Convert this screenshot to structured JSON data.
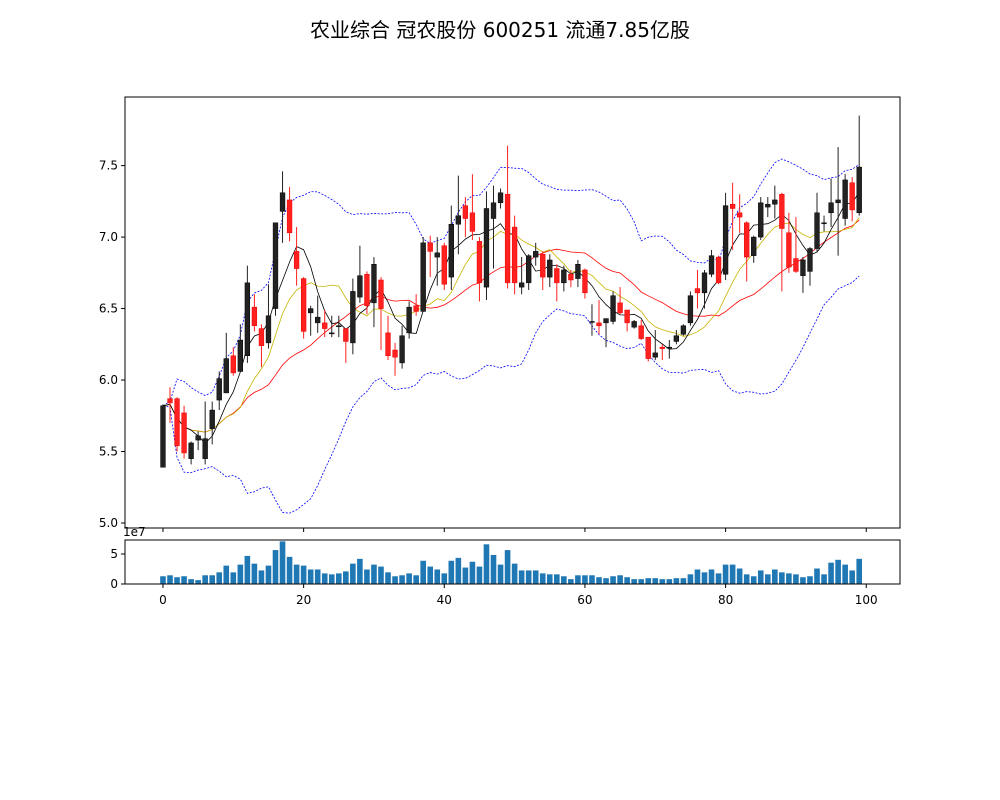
{
  "title": "农业综合 冠农股份 600251 流通7.85亿股",
  "chart_data": [
    {
      "type": "candlestick",
      "title": "农业综合 冠农股份 600251 流通7.85亿股",
      "xlim": [
        -5.4,
        104.8
      ],
      "ylim": [
        4.965,
        7.98
      ],
      "yticks": [
        "5.0",
        "5.5",
        "6.0",
        "6.5",
        "7.0",
        "7.5"
      ],
      "grid": false,
      "colors": {
        "up": "#222222",
        "down": "#ff2020",
        "ma_short": "#000000",
        "ma_mid": "#c8b400",
        "ma_long": "#ff0000",
        "bollinger": "#0000ff"
      },
      "overlays": [
        "moving average (black)",
        "moving average (yellow)",
        "moving average (red)",
        "bollinger bands (blue dashed)"
      ],
      "open": [
        5.39,
        5.87,
        5.87,
        5.77,
        5.45,
        5.58,
        5.45,
        5.66,
        5.86,
        5.91,
        6.17,
        6.06,
        6.17,
        6.51,
        6.36,
        6.26,
        6.5,
        7.18,
        7.26,
        6.9,
        6.71,
        6.47,
        6.4,
        6.4,
        6.33,
        6.38,
        6.36,
        6.26,
        6.58,
        6.74,
        6.54,
        6.7,
        6.33,
        6.21,
        6.12,
        6.33,
        6.52,
        6.48,
        6.96,
        6.86,
        6.94,
        6.72,
        7.09,
        7.22,
        7.17,
        6.97,
        6.65,
        7.13,
        7.24,
        7.3,
        7.07,
        6.65,
        6.68,
        6.86,
        6.88,
        6.72,
        6.78,
        6.68,
        6.74,
        6.71,
        6.77,
        6.41,
        6.4,
        6.4,
        6.41,
        6.54,
        6.49,
        6.37,
        6.38,
        6.3,
        6.16,
        6.23,
        6.23,
        6.27,
        6.32,
        6.4,
        6.64,
        6.61,
        6.74,
        6.86,
        6.74,
        7.23,
        7.17,
        7.1,
        6.87,
        7.0,
        7.21,
        7.23,
        7.3,
        7.03,
        6.85,
        6.73,
        6.76,
        6.92,
        7.1,
        7.17,
        7.24,
        7.13,
        7.38,
        7.17
      ],
      "close": [
        5.82,
        5.84,
        5.54,
        5.49,
        5.56,
        5.61,
        5.59,
        5.79,
        6.01,
        6.15,
        6.05,
        6.28,
        6.68,
        6.38,
        6.24,
        6.45,
        7.1,
        7.31,
        7.03,
        6.78,
        6.34,
        6.5,
        6.44,
        6.36,
        6.33,
        6.38,
        6.27,
        6.62,
        6.73,
        6.52,
        6.81,
        6.5,
        6.17,
        6.16,
        6.31,
        6.51,
        6.48,
        6.96,
        6.9,
        6.89,
        6.67,
        7.09,
        7.15,
        7.13,
        7.04,
        6.68,
        7.2,
        7.24,
        7.31,
        6.68,
        6.68,
        6.68,
        6.87,
        6.9,
        6.72,
        6.84,
        6.68,
        6.77,
        6.7,
        6.81,
        6.61,
        6.41,
        6.38,
        6.43,
        6.59,
        6.47,
        6.4,
        6.41,
        6.29,
        6.15,
        6.19,
        6.22,
        6.23,
        6.31,
        6.38,
        6.59,
        6.61,
        6.75,
        6.87,
        6.68,
        7.22,
        7.2,
        7.14,
        6.86,
        7.0,
        7.24,
        7.23,
        7.26,
        7.06,
        6.79,
        6.76,
        6.84,
        6.92,
        7.17,
        7.1,
        7.24,
        7.26,
        7.4,
        7.19,
        7.49
      ],
      "high": [
        5.83,
        5.95,
        5.88,
        5.82,
        5.57,
        5.64,
        5.85,
        5.85,
        6.06,
        6.33,
        6.23,
        6.39,
        6.8,
        6.6,
        6.39,
        6.67,
        7.1,
        7.46,
        7.35,
        7.07,
        6.72,
        6.52,
        6.59,
        6.49,
        6.45,
        6.45,
        6.36,
        6.71,
        6.94,
        6.76,
        6.86,
        6.72,
        6.45,
        6.26,
        6.38,
        6.55,
        6.6,
        7.0,
        7.01,
        7.0,
        6.96,
        7.22,
        7.43,
        7.28,
        7.44,
        7.0,
        7.32,
        7.36,
        7.34,
        7.64,
        7.15,
        6.86,
        6.88,
        6.96,
        6.9,
        6.88,
        6.81,
        6.8,
        6.77,
        6.84,
        6.78,
        6.53,
        6.56,
        6.43,
        6.62,
        6.65,
        6.49,
        6.42,
        6.42,
        6.3,
        6.35,
        6.25,
        6.28,
        6.35,
        6.39,
        6.62,
        6.77,
        6.77,
        6.91,
        6.87,
        7.31,
        7.38,
        7.3,
        7.11,
        7.01,
        7.28,
        7.28,
        7.36,
        7.31,
        7.17,
        7.14,
        6.86,
        6.93,
        7.31,
        7.15,
        7.41,
        7.63,
        7.44,
        7.42,
        7.85
      ],
      "low": [
        5.39,
        5.7,
        5.5,
        5.45,
        5.41,
        5.51,
        5.41,
        5.55,
        5.79,
        5.91,
        6.03,
        6.06,
        6.12,
        6.34,
        6.09,
        6.22,
        6.45,
        6.96,
        6.97,
        6.66,
        6.29,
        6.31,
        6.33,
        6.3,
        6.3,
        6.3,
        6.12,
        6.18,
        6.54,
        6.46,
        6.37,
        6.21,
        6.14,
        6.03,
        6.08,
        6.29,
        6.45,
        6.48,
        6.72,
        6.66,
        6.63,
        6.63,
        6.88,
        7.0,
        6.98,
        6.55,
        6.56,
        6.78,
        7.2,
        6.64,
        6.6,
        6.6,
        6.63,
        6.8,
        6.63,
        6.65,
        6.55,
        6.62,
        6.65,
        6.65,
        6.57,
        6.31,
        6.32,
        6.23,
        6.39,
        6.46,
        6.34,
        6.36,
        6.28,
        6.13,
        6.14,
        6.14,
        6.15,
        6.25,
        6.31,
        6.38,
        6.5,
        6.5,
        6.72,
        6.67,
        6.7,
        6.91,
        7.03,
        6.69,
        6.82,
        6.98,
        7.14,
        7.13,
        6.62,
        6.75,
        6.75,
        6.61,
        6.66,
        6.9,
        7.04,
        7.07,
        6.87,
        7.08,
        7.11,
        7.15
      ]
    },
    {
      "type": "bar",
      "xticks": [
        "0",
        "20",
        "40",
        "60",
        "80",
        "100"
      ],
      "yticks": [
        "0",
        "5"
      ],
      "offset_label": "1e7",
      "ylim": [
        0,
        7.33
      ],
      "color": "#1f77b4",
      "values": [
        1.29,
        1.45,
        1.13,
        1.29,
        0.81,
        0.65,
        1.45,
        1.45,
        1.94,
        3.06,
        1.94,
        3.23,
        4.68,
        3.39,
        2.26,
        3.06,
        5.65,
        7.1,
        4.52,
        3.23,
        3.06,
        2.42,
        2.42,
        1.77,
        1.61,
        1.77,
        2.1,
        3.39,
        4.19,
        2.42,
        3.23,
        2.9,
        1.94,
        1.29,
        1.45,
        1.77,
        1.45,
        3.87,
        2.9,
        2.42,
        1.77,
        3.87,
        4.35,
        2.74,
        3.71,
        2.9,
        6.61,
        4.84,
        3.23,
        5.65,
        3.39,
        2.26,
        2.26,
        2.26,
        1.77,
        1.61,
        1.61,
        1.29,
        0.81,
        1.45,
        1.45,
        1.45,
        1.13,
        0.97,
        1.29,
        1.45,
        1.13,
        0.81,
        0.81,
        0.97,
        0.97,
        0.81,
        0.81,
        0.97,
        0.97,
        1.61,
        2.42,
        1.94,
        2.42,
        1.77,
        3.23,
        3.23,
        2.58,
        1.61,
        1.29,
        2.26,
        1.61,
        2.42,
        1.94,
        1.77,
        1.61,
        1.13,
        1.29,
        2.58,
        1.61,
        3.55,
        4.03,
        3.23,
        2.26,
        4.19
      ]
    }
  ]
}
